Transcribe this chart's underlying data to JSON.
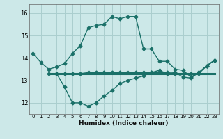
{
  "xlabel": "Humidex (Indice chaleur)",
  "x_ticks": [
    0,
    1,
    2,
    3,
    4,
    5,
    6,
    7,
    8,
    9,
    10,
    11,
    12,
    13,
    14,
    15,
    16,
    17,
    18,
    19,
    20,
    21,
    22,
    23
  ],
  "ylim": [
    11.5,
    16.4
  ],
  "xlim": [
    -0.5,
    23.5
  ],
  "yticks": [
    12,
    13,
    14,
    15,
    16
  ],
  "bg_color": "#cce8e8",
  "grid_color": "#aacece",
  "line_color": "#1a7068",
  "series1_x": [
    0,
    1,
    2,
    3,
    4,
    5,
    6,
    7,
    8,
    9,
    10,
    11,
    12,
    13,
    14,
    15,
    16,
    17,
    18,
    19,
    20,
    21,
    22,
    23
  ],
  "series1_y": [
    14.2,
    13.8,
    13.5,
    13.6,
    13.75,
    14.2,
    14.55,
    15.35,
    15.45,
    15.5,
    15.85,
    15.75,
    15.85,
    15.85,
    14.4,
    14.4,
    13.85,
    13.85,
    13.5,
    13.45,
    13.15,
    13.35,
    13.65,
    13.9
  ],
  "series2_x": [
    3,
    4,
    5,
    6,
    7,
    8,
    9,
    10,
    11,
    12,
    13,
    14,
    15,
    16,
    17,
    18,
    19,
    20,
    21,
    22,
    23
  ],
  "series2_y": [
    13.3,
    12.7,
    12.0,
    12.0,
    11.85,
    12.0,
    12.3,
    12.55,
    12.85,
    13.0,
    13.1,
    13.2,
    13.35,
    13.45,
    13.3,
    13.35,
    13.15,
    13.1,
    13.35,
    13.65,
    13.9
  ],
  "series3_x": [
    2,
    3,
    4,
    5,
    6,
    7,
    8,
    9,
    10,
    11,
    12,
    13,
    14,
    15,
    16,
    17,
    18,
    19,
    20,
    21,
    22,
    23
  ],
  "series3_y": [
    13.3,
    13.3,
    13.3,
    13.3,
    13.3,
    13.35,
    13.35,
    13.35,
    13.35,
    13.35,
    13.35,
    13.35,
    13.35,
    13.35,
    13.35,
    13.35,
    13.3,
    13.3,
    13.3,
    13.3,
    13.65,
    13.9
  ],
  "series4_x": [
    2,
    23
  ],
  "series4_y": [
    13.3,
    13.3
  ],
  "marker": "D",
  "markersize": 2.5,
  "linewidth": 1.0,
  "hline_linewidth": 2.2
}
